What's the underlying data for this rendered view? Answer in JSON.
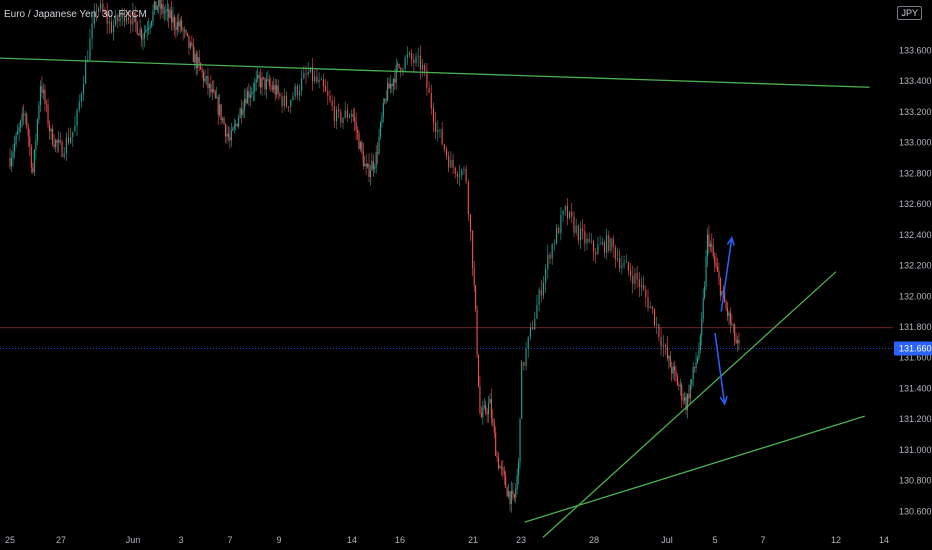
{
  "header": {
    "symbol_title": "Euro / Japanese Yen, 30, FXCM",
    "currency": "JPY"
  },
  "colors": {
    "background": "#000000",
    "up_candle": "#26a69a",
    "down_candle": "#ef5350",
    "trendline": "#4caf50",
    "arrow": "#2962ff",
    "last_price_line": "#2962ff",
    "horizontal_level_line": "#ef5350",
    "axis_text": "#b2b5be"
  },
  "chart_data": {
    "type": "candlestick",
    "title": "Euro / Japanese Yen, 30, FXCM",
    "currency": "JPY",
    "y_tick_labels": [
      "130.600",
      "130.800",
      "131.000",
      "131.200",
      "131.400",
      "131.600",
      "131.800",
      "132.000",
      "132.200",
      "132.400",
      "132.600",
      "132.800",
      "133.000",
      "133.200",
      "133.400",
      "133.600"
    ],
    "y_ticks": [
      130.6,
      130.8,
      131.0,
      131.2,
      131.4,
      131.6,
      131.8,
      132.0,
      132.2,
      132.4,
      132.6,
      132.8,
      133.0,
      133.2,
      133.4,
      133.6
    ],
    "ylim": [
      130.5,
      133.83
    ],
    "x_tick_labels": [
      "25",
      "27",
      "Jun",
      "3",
      "7",
      "9",
      "14",
      "16",
      "21",
      "23",
      "28",
      "Jul",
      "5",
      "7",
      "12",
      "14"
    ],
    "x_ticks": [
      0,
      1,
      2,
      3,
      4,
      5,
      6,
      7,
      8,
      9,
      10,
      11,
      12,
      13,
      14,
      15
    ],
    "last_price": 131.66,
    "last_price_label": "131.660",
    "horizontal_level": 131.795,
    "price_path": [
      [
        0.0,
        132.9
      ],
      [
        0.3,
        133.2
      ],
      [
        0.45,
        132.8
      ],
      [
        0.6,
        133.4
      ],
      [
        0.8,
        133.05
      ],
      [
        1.0,
        132.95
      ],
      [
        1.2,
        133.1
      ],
      [
        1.3,
        133.4
      ],
      [
        1.5,
        133.9
      ],
      [
        1.7,
        133.75
      ],
      [
        1.9,
        133.85
      ],
      [
        2.2,
        133.7
      ],
      [
        2.5,
        133.9
      ],
      [
        2.8,
        133.8
      ],
      [
        3.0,
        133.75
      ],
      [
        3.2,
        133.6
      ],
      [
        3.5,
        133.4
      ],
      [
        3.8,
        133.2
      ],
      [
        4.0,
        133.0
      ],
      [
        4.3,
        133.3
      ],
      [
        4.6,
        133.4
      ],
      [
        4.9,
        133.35
      ],
      [
        5.1,
        133.25
      ],
      [
        5.4,
        133.45
      ],
      [
        5.6,
        133.35
      ],
      [
        5.8,
        133.15
      ],
      [
        6.0,
        133.2
      ],
      [
        6.3,
        132.8
      ],
      [
        6.5,
        132.9
      ],
      [
        6.7,
        133.3
      ],
      [
        6.9,
        133.45
      ],
      [
        7.1,
        133.55
      ],
      [
        7.3,
        133.5
      ],
      [
        7.5,
        133.1
      ],
      [
        7.7,
        132.85
      ],
      [
        7.9,
        132.8
      ],
      [
        8.05,
        131.9
      ],
      [
        8.15,
        131.2
      ],
      [
        8.35,
        131.3
      ],
      [
        8.5,
        130.95
      ],
      [
        8.7,
        130.75
      ],
      [
        8.85,
        130.65
      ],
      [
        8.95,
        130.9
      ],
      [
        9.0,
        131.5
      ],
      [
        9.2,
        131.9
      ],
      [
        9.4,
        132.3
      ],
      [
        9.6,
        132.55
      ],
      [
        9.8,
        132.4
      ],
      [
        10.0,
        132.3
      ],
      [
        10.2,
        132.35
      ],
      [
        10.4,
        132.2
      ],
      [
        10.6,
        132.1
      ],
      [
        10.8,
        131.9
      ],
      [
        11.0,
        131.6
      ],
      [
        11.2,
        131.45
      ],
      [
        11.4,
        131.3
      ],
      [
        11.55,
        131.5
      ],
      [
        11.7,
        131.7
      ],
      [
        11.85,
        132.4
      ],
      [
        12.0,
        132.2
      ],
      [
        12.2,
        131.95
      ],
      [
        12.35,
        131.8
      ],
      [
        12.45,
        131.68
      ],
      [
        12.5,
        131.66
      ]
    ],
    "trendlines": [
      {
        "x1": -0.2,
        "y1": 133.55,
        "x2": 14.7,
        "y2": 133.36
      },
      {
        "x1": 9.05,
        "y1": 130.53,
        "x2": 14.6,
        "y2": 131.22
      },
      {
        "x1": 9.3,
        "y1": 130.43,
        "x2": 14.0,
        "y2": 132.16
      }
    ],
    "arrows": [
      {
        "x1": 12.13,
        "y1": 131.9,
        "x2": 12.35,
        "y2": 132.38,
        "direction": "up"
      },
      {
        "x1": 12.0,
        "y1": 131.76,
        "x2": 12.2,
        "y2": 131.3,
        "direction": "down"
      }
    ],
    "grid": false,
    "legend": "none"
  }
}
